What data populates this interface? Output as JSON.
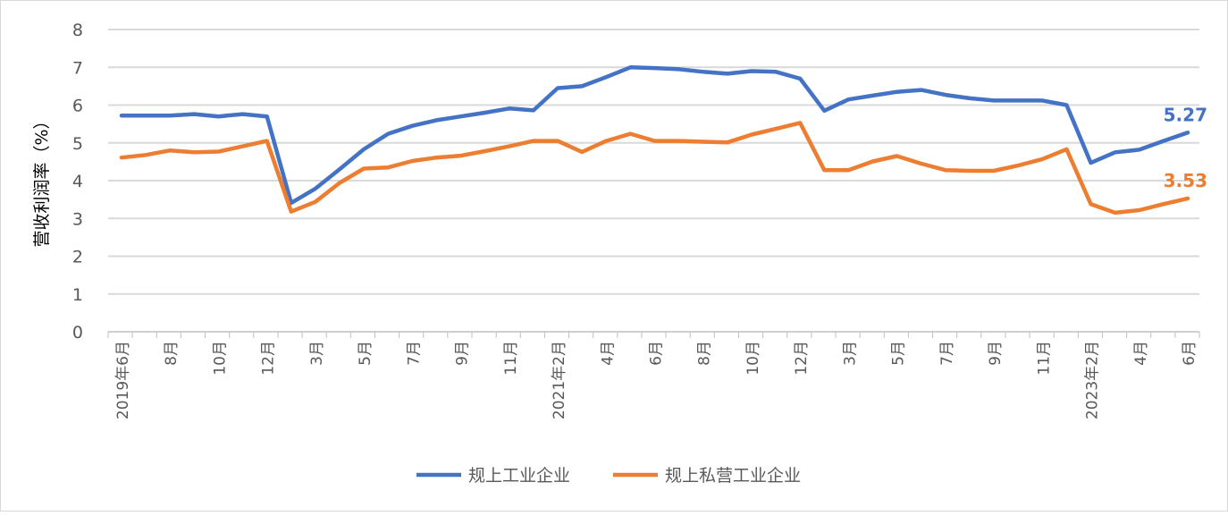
{
  "chart_data": {
    "type": "line",
    "title": "",
    "xlabel": "",
    "ylabel": "营收利润率（%）",
    "ylim": [
      0,
      8
    ],
    "yticks": [
      "0",
      "1",
      "2",
      "3",
      "4",
      "5",
      "6",
      "7",
      "8"
    ],
    "grid": true,
    "legend_position": "bottom",
    "categories": [
      "2019年6月",
      "7月",
      "8月",
      "9月",
      "10月",
      "11月",
      "12月",
      "2月",
      "3月",
      "4月",
      "5月",
      "6月",
      "7月",
      "8月",
      "9月",
      "10月",
      "11月",
      "12月",
      "2021年2月",
      "3月",
      "4月",
      "5月",
      "6月",
      "7月",
      "8月",
      "9月",
      "10月",
      "11月",
      "12月",
      "2月",
      "3月",
      "4月",
      "5月",
      "6月",
      "7月",
      "8月",
      "9月",
      "10月",
      "11月",
      "12月",
      "2023年2月",
      "3月",
      "4月",
      "5月",
      "6月"
    ],
    "tick_labels_shown_every": 2,
    "series": [
      {
        "name": "规上工业企业",
        "color": "#4472C4",
        "end_label": "5.27",
        "values": [
          5.72,
          5.72,
          5.72,
          5.76,
          5.7,
          5.76,
          5.7,
          3.41,
          3.79,
          4.3,
          4.83,
          5.24,
          5.45,
          5.6,
          5.7,
          5.8,
          5.91,
          5.86,
          6.45,
          6.5,
          6.74,
          7.0,
          6.98,
          6.95,
          6.88,
          6.83,
          6.9,
          6.88,
          6.7,
          5.85,
          6.15,
          6.25,
          6.35,
          6.4,
          6.27,
          6.18,
          6.12,
          6.12,
          6.12,
          6.0,
          4.47,
          4.75,
          4.82,
          5.05,
          5.27
        ]
      },
      {
        "name": "规上私营工业企业",
        "color": "#ED7D31",
        "end_label": "3.53",
        "values": [
          4.61,
          4.68,
          4.8,
          4.75,
          4.77,
          4.91,
          5.05,
          3.18,
          3.44,
          3.94,
          4.32,
          4.35,
          4.52,
          4.61,
          4.66,
          4.78,
          4.91,
          5.05,
          5.05,
          4.76,
          5.05,
          5.24,
          5.05,
          5.05,
          5.03,
          5.01,
          5.22,
          5.37,
          5.53,
          4.28,
          4.28,
          4.51,
          4.65,
          4.45,
          4.28,
          4.26,
          4.26,
          4.4,
          4.57,
          4.83,
          3.38,
          3.15,
          3.22,
          3.38,
          3.53
        ]
      }
    ]
  }
}
